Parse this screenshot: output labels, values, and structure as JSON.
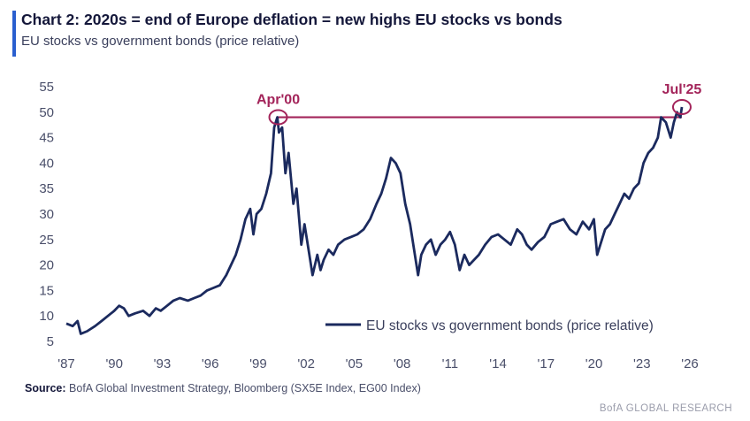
{
  "header": {
    "title": "Chart 2: 2020s = end of Europe deflation = new highs EU stocks vs bonds",
    "subtitle": "EU stocks vs government bonds (price relative)"
  },
  "footer": {
    "source_label": "Source:",
    "source_text": "BofA Global Investment Strategy, Bloomberg (SX5E Index, EG00 Index)",
    "brand": "BofA GLOBAL RESEARCH"
  },
  "colors": {
    "series": "#1b2a5e",
    "annotation": "#a3245a",
    "accent": "#2a5fcf"
  },
  "chart_data": {
    "type": "line",
    "title": "",
    "xlabel": "",
    "ylabel": "",
    "xlim": [
      1987,
      2026
    ],
    "ylim": [
      5,
      55
    ],
    "yticks": [
      5,
      10,
      15,
      20,
      25,
      30,
      35,
      40,
      45,
      50,
      55
    ],
    "yticklabels": [
      "5",
      "10",
      "15",
      "20",
      "25",
      "30",
      "35",
      "40",
      "45",
      "50",
      "55"
    ],
    "xticks": [
      1987,
      1990,
      1993,
      1996,
      1999,
      2002,
      2005,
      2008,
      2011,
      2014,
      2017,
      2020,
      2023,
      2026
    ],
    "xticklabels": [
      "'87",
      "'90",
      "'93",
      "'96",
      "'99",
      "'02",
      "'05",
      "'08",
      "'11",
      "'14",
      "'17",
      "'20",
      "'23",
      "'26"
    ],
    "grid": false,
    "legend": "bottom-right",
    "series": [
      {
        "name": "EU stocks vs government bonds (price relative)",
        "x": [
          1987.0,
          1987.4,
          1987.7,
          1987.9,
          1988.3,
          1988.8,
          1989.2,
          1989.6,
          1990.0,
          1990.3,
          1990.6,
          1990.9,
          1991.3,
          1991.8,
          1992.2,
          1992.6,
          1992.9,
          1993.3,
          1993.7,
          1994.1,
          1994.6,
          1995.0,
          1995.4,
          1995.8,
          1996.2,
          1996.6,
          1997.0,
          1997.3,
          1997.6,
          1997.9,
          1998.2,
          1998.5,
          1998.7,
          1998.9,
          1999.2,
          1999.5,
          1999.8,
          2000.0,
          2000.2,
          2000.3,
          2000.5,
          2000.7,
          2000.9,
          2001.2,
          2001.4,
          2001.7,
          2001.9,
          2002.2,
          2002.4,
          2002.7,
          2002.9,
          2003.1,
          2003.4,
          2003.7,
          2004.0,
          2004.4,
          2004.8,
          2005.2,
          2005.6,
          2006.0,
          2006.4,
          2006.7,
          2007.0,
          2007.3,
          2007.6,
          2007.9,
          2008.2,
          2008.5,
          2008.8,
          2009.0,
          2009.2,
          2009.5,
          2009.8,
          2010.1,
          2010.4,
          2010.7,
          2011.0,
          2011.3,
          2011.6,
          2011.9,
          2012.2,
          2012.5,
          2012.8,
          2013.2,
          2013.6,
          2014.0,
          2014.4,
          2014.8,
          2015.2,
          2015.5,
          2015.8,
          2016.1,
          2016.5,
          2016.9,
          2017.3,
          2017.7,
          2018.1,
          2018.5,
          2018.9,
          2019.3,
          2019.7,
          2020.0,
          2020.2,
          2020.4,
          2020.7,
          2021.0,
          2021.3,
          2021.6,
          2021.9,
          2022.2,
          2022.5,
          2022.8,
          2023.1,
          2023.4,
          2023.7,
          2024.0,
          2024.2,
          2024.5,
          2024.8,
          2025.0,
          2025.2,
          2025.4,
          2025.5
        ],
        "values": [
          8.5,
          8.0,
          9.0,
          6.5,
          7.0,
          8.0,
          9.0,
          10.0,
          11.0,
          12.0,
          11.5,
          10.0,
          10.5,
          11.0,
          10.0,
          11.5,
          11.0,
          12.0,
          13.0,
          13.5,
          13.0,
          13.5,
          14.0,
          15.0,
          15.5,
          16.0,
          18.0,
          20.0,
          22.0,
          25.0,
          29.0,
          31.0,
          26.0,
          30.0,
          31.0,
          34.0,
          38.0,
          47.0,
          49.0,
          46.0,
          47.0,
          38.0,
          42.0,
          32.0,
          35.0,
          24.0,
          28.0,
          22.0,
          18.0,
          22.0,
          19.0,
          21.0,
          23.0,
          22.0,
          24.0,
          25.0,
          25.5,
          26.0,
          27.0,
          29.0,
          32.0,
          34.0,
          37.0,
          41.0,
          40.0,
          38.0,
          32.0,
          28.0,
          22.0,
          18.0,
          22.0,
          24.0,
          25.0,
          22.0,
          24.0,
          25.0,
          26.5,
          24.0,
          19.0,
          22.0,
          20.0,
          21.0,
          22.0,
          24.0,
          25.5,
          26.0,
          25.0,
          24.0,
          27.0,
          26.0,
          24.0,
          23.0,
          24.5,
          25.5,
          28.0,
          28.5,
          29.0,
          27.0,
          26.0,
          28.5,
          27.0,
          29.0,
          22.0,
          24.0,
          27.0,
          28.0,
          30.0,
          32.0,
          34.0,
          33.0,
          35.0,
          36.0,
          40.0,
          42.0,
          43.0,
          45.0,
          49.0,
          48.0,
          45.0,
          48.0,
          50.0,
          49.0,
          51.0
        ]
      }
    ],
    "annotations": [
      {
        "label": "Apr'00",
        "x": 2000.25,
        "y": 49.0
      },
      {
        "label": "Jul'25",
        "x": 2025.5,
        "y": 51.0
      }
    ],
    "reference_line": {
      "y": 49.0,
      "x_start": 2000.25,
      "x_end": 2025.5
    }
  }
}
